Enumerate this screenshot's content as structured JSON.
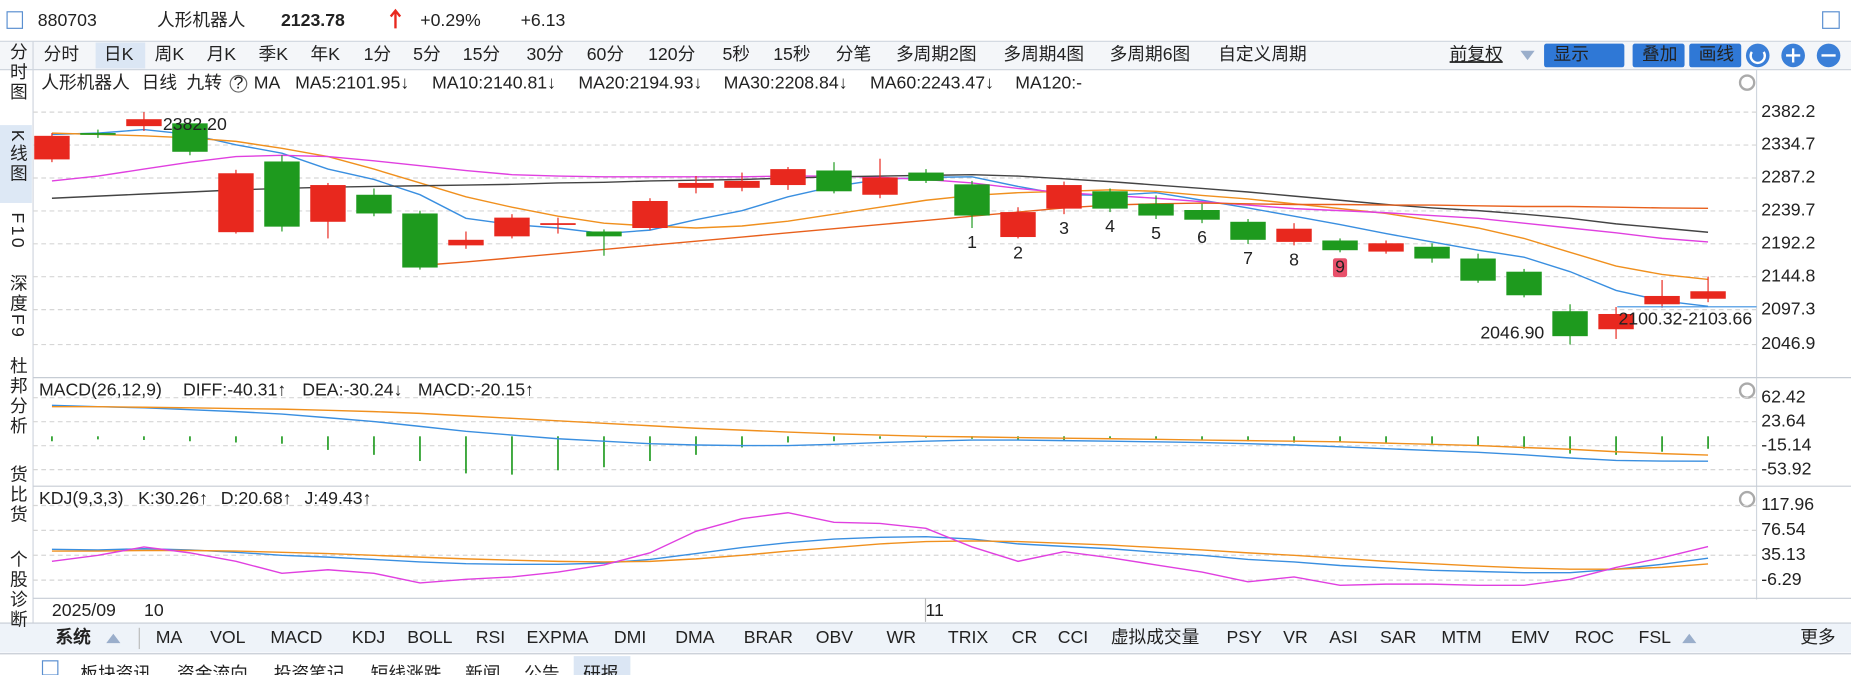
{
  "header": {
    "code": "880703",
    "name": "人形机器人",
    "price": "2123.78",
    "change_pct": "+0.29%",
    "change": "+6.13"
  },
  "left_nav": [
    "分时图",
    "K线图",
    "F10",
    "深度F9",
    "杜邦分析",
    "货比货",
    "个股诊断"
  ],
  "periods": [
    "分时",
    "日K",
    "周K",
    "月K",
    "季K",
    "年K",
    "1分",
    "5分",
    "15分",
    "30分",
    "60分",
    "120分",
    "5秒",
    "15秒",
    "分笔",
    "多周期2图",
    "多周期4图",
    "多周期6图",
    "自定义周期"
  ],
  "active_period": "日K",
  "toolbar": {
    "adjust": "前复权",
    "buttons": [
      "显示",
      "叠加",
      "画线"
    ]
  },
  "kline": {
    "legend": [
      "人形机器人",
      "日线",
      "九转"
    ],
    "ylim": [
      2002.6,
      2438.4
    ],
    "yticks": [
      2382.2,
      2334.7,
      2287.2,
      2239.7,
      2192.2,
      2144.8,
      2097.3,
      2046.9
    ],
    "candles": [
      {
        "open": 2314,
        "high": 2352,
        "low": 2310,
        "close": 2348
      },
      {
        "open": 2352,
        "high": 2357,
        "low": 2345,
        "close": 2350
      },
      {
        "open": 2362,
        "high": 2382.2,
        "low": 2355,
        "close": 2372
      },
      {
        "open": 2366,
        "high": 2372,
        "low": 2320,
        "close": 2325
      },
      {
        "open": 2209,
        "high": 2299,
        "low": 2207,
        "close": 2294
      },
      {
        "open": 2311,
        "high": 2320,
        "low": 2210,
        "close": 2217
      },
      {
        "open": 2224,
        "high": 2280,
        "low": 2200,
        "close": 2277
      },
      {
        "open": 2263,
        "high": 2272,
        "low": 2232,
        "close": 2236
      },
      {
        "open": 2236,
        "high": 2240,
        "low": 2155,
        "close": 2158
      },
      {
        "open": 2190,
        "high": 2210,
        "low": 2185,
        "close": 2198
      },
      {
        "open": 2203,
        "high": 2235,
        "low": 2200,
        "close": 2230
      },
      {
        "open": 2220,
        "high": 2230,
        "low": 2207,
        "close": 2222
      },
      {
        "open": 2210,
        "high": 2213,
        "low": 2175,
        "close": 2203
      },
      {
        "open": 2215,
        "high": 2258,
        "low": 2212,
        "close": 2254
      },
      {
        "open": 2273,
        "high": 2290,
        "low": 2265,
        "close": 2280
      },
      {
        "open": 2273,
        "high": 2295,
        "low": 2268,
        "close": 2283
      },
      {
        "open": 2277,
        "high": 2303,
        "low": 2270,
        "close": 2300
      },
      {
        "open": 2298,
        "high": 2310,
        "low": 2265,
        "close": 2268
      },
      {
        "open": 2263,
        "high": 2315,
        "low": 2258,
        "close": 2288
      },
      {
        "open": 2295,
        "high": 2300,
        "low": 2280,
        "close": 2283
      },
      {
        "open": 2278,
        "high": 2283,
        "low": 2215,
        "close": 2233
      },
      {
        "open": 2202,
        "high": 2245,
        "low": 2200,
        "close": 2238
      },
      {
        "open": 2243,
        "high": 2282,
        "low": 2235,
        "close": 2277
      },
      {
        "open": 2268,
        "high": 2272,
        "low": 2238,
        "close": 2243
      },
      {
        "open": 2250,
        "high": 2262,
        "low": 2228,
        "close": 2233
      },
      {
        "open": 2241,
        "high": 2250,
        "low": 2222,
        "close": 2227
      },
      {
        "open": 2224,
        "high": 2228,
        "low": 2192,
        "close": 2198
      },
      {
        "open": 2195,
        "high": 2222,
        "low": 2190,
        "close": 2214
      },
      {
        "open": 2197,
        "high": 2200,
        "low": 2180,
        "close": 2183
      },
      {
        "open": 2181,
        "high": 2197,
        "low": 2178,
        "close": 2193
      },
      {
        "open": 2188,
        "high": 2193,
        "low": 2165,
        "close": 2171
      },
      {
        "open": 2171,
        "high": 2178,
        "low": 2136,
        "close": 2139
      },
      {
        "open": 2152,
        "high": 2156,
        "low": 2115,
        "close": 2118
      },
      {
        "open": 2095,
        "high": 2105,
        "low": 2046.9,
        "close": 2059
      },
      {
        "open": 2069,
        "high": 2101,
        "low": 2055,
        "close": 2091
      },
      {
        "open": 2105,
        "high": 2140,
        "low": 2100,
        "close": 2117
      },
      {
        "open": 2113,
        "high": 2145,
        "low": 2108,
        "close": 2123.78
      }
    ],
    "ma_label": "MA",
    "ma": [
      {
        "name": "MA5:2101.95↓",
        "color": "#3a8fe0",
        "values": [
          2350,
          2352,
          2357,
          2350,
          2335,
          2323,
          2300,
          2285,
          2263,
          2229,
          2220,
          2215,
          2207,
          2212,
          2227,
          2240,
          2260,
          2275,
          2285,
          2288,
          2289,
          2275,
          2263,
          2262,
          2266,
          2255,
          2244,
          2232,
          2220,
          2207,
          2195,
          2183,
          2173,
          2152,
          2125,
          2110,
          2101.95
        ]
      },
      {
        "name": "MA10:2140.81↓",
        "color": "#f0901e",
        "values": [
          2352,
          2350,
          2348,
          2345,
          2340,
          2330,
          2318,
          2300,
          2280,
          2260,
          2245,
          2232,
          2222,
          2218,
          2215,
          2218,
          2225,
          2235,
          2245,
          2255,
          2262,
          2266,
          2268,
          2270,
          2268,
          2262,
          2257,
          2250,
          2243,
          2236,
          2226,
          2215,
          2200,
          2180,
          2160,
          2148,
          2140.81
        ]
      },
      {
        "name": "MA20:2194.93↓",
        "color": "#e040e0",
        "values": [
          2283,
          2290,
          2300,
          2310,
          2318,
          2320,
          2318,
          2312,
          2305,
          2298,
          2292,
          2290,
          2289,
          2289,
          2289,
          2289,
          2290,
          2290,
          2288,
          2285,
          2280,
          2272,
          2266,
          2262,
          2258,
          2253,
          2248,
          2243,
          2240,
          2237,
          2233,
          2229,
          2222,
          2215,
          2208,
          2200,
          2194.93
        ]
      },
      {
        "name": "MA30:2208.84↓",
        "color": "#444444",
        "values": [
          2258,
          2261,
          2264,
          2267,
          2270,
          2272,
          2274,
          2275,
          2276,
          2277,
          2278,
          2280,
          2281,
          2283,
          2284,
          2285,
          2287,
          2289,
          2290,
          2291,
          2292,
          2290,
          2286,
          2282,
          2277,
          2272,
          2267,
          2261,
          2255,
          2249,
          2244,
          2240,
          2235,
          2229,
          2221,
          2215,
          2208.84
        ]
      },
      {
        "name": "MA60:2243.47↓",
        "color": "#e8601c",
        "values": [
          null,
          null,
          null,
          null,
          null,
          null,
          null,
          null,
          2161,
          2166,
          2172,
          2178,
          2184,
          2190,
          2196,
          2202,
          2208,
          2214,
          2220,
          2226,
          2232,
          2238,
          2244,
          2248,
          2250,
          2251,
          2250,
          2249,
          2249,
          2248,
          2248,
          2247,
          2246,
          2246,
          2245,
          2244,
          2243.47
        ]
      },
      {
        "name": "MA120:-",
        "color": "#7a3fb0",
        "values": []
      }
    ],
    "high_label": "2382.20",
    "low_label": "2046.90",
    "range_label": "2100.32-2103.66",
    "nine_turn": [
      1,
      2,
      3,
      4,
      5,
      6,
      7,
      8,
      9
    ]
  },
  "macd": {
    "title": "MACD(26,12,9)",
    "ylim": [
      -80.7,
      91.1
    ],
    "yticks": [
      62.42,
      23.64,
      -15.14,
      -53.92
    ],
    "hist_name": "MACD:-20.15↑",
    "hist_color": "#e040e0",
    "hist": [
      -8,
      -5,
      -6,
      -8,
      -10,
      -12,
      -22,
      -30,
      -40,
      -60,
      -62,
      -55,
      -50,
      -40,
      -30,
      -18,
      -10,
      -8,
      -4,
      -2,
      -4,
      -6,
      -6,
      -4,
      -4,
      -6,
      -8,
      -10,
      -10,
      -10,
      -12,
      -15,
      -20,
      -28,
      -30,
      -25,
      -20.15
    ],
    "lines": [
      {
        "name": "DIFF:-40.31↑",
        "color": "#3a8fe0",
        "values": [
          50,
          48,
          46,
          43,
          40,
          36,
          30,
          24,
          16,
          8,
          2,
          -4,
          -8,
          -12,
          -14,
          -15,
          -15,
          -13,
          -10,
          -8,
          -6,
          -6,
          -7,
          -8,
          -9,
          -10,
          -12,
          -14,
          -17,
          -20,
          -23,
          -26,
          -30,
          -35,
          -39,
          -40,
          -40.31
        ]
      },
      {
        "name": "DEA:-30.24↓",
        "color": "#f0901e",
        "values": [
          48,
          48,
          47,
          46,
          45,
          44,
          42,
          40,
          37,
          33,
          29,
          25,
          21,
          17,
          13,
          10,
          7,
          4,
          2,
          0,
          -1,
          -2,
          -3,
          -4,
          -5,
          -6,
          -7,
          -8,
          -9,
          -11,
          -13,
          -15,
          -18,
          -21,
          -25,
          -28,
          -30.24
        ]
      }
    ]
  },
  "kdj": {
    "title": "KDJ(9,3,3)",
    "ylim": [
      -34.6,
      146.2
    ],
    "yticks": [
      117.96,
      76.54,
      35.13,
      -6.29
    ],
    "lines": [
      {
        "name": "K:30.26↑",
        "color": "#3a8fe0",
        "values": [
          45,
          44,
          46,
          44,
          40,
          35,
          32,
          28,
          24,
          21,
          20,
          20,
          22,
          28,
          38,
          48,
          56,
          62,
          65,
          66,
          62,
          54,
          50,
          46,
          40,
          35,
          28,
          24,
          18,
          14,
          10,
          8,
          6,
          6,
          12,
          20,
          30.26
        ]
      },
      {
        "name": "D:20.68↑",
        "color": "#f0901e",
        "values": [
          42,
          42,
          43,
          43,
          42,
          40,
          38,
          35,
          32,
          29,
          27,
          25,
          24,
          25,
          29,
          35,
          42,
          48,
          54,
          58,
          59,
          58,
          55,
          52,
          48,
          44,
          39,
          35,
          30,
          25,
          21,
          17,
          14,
          12,
          12,
          15,
          20.68
        ]
      },
      {
        "name": "J:49.43↑",
        "color": "#e040e0",
        "values": [
          25,
          35,
          49,
          39,
          25,
          5,
          11,
          5,
          -11,
          -5,
          -1,
          7,
          19,
          39,
          75,
          96,
          106,
          90,
          88,
          80,
          49,
          25,
          41,
          31,
          19,
          7,
          -9,
          -1,
          -15,
          -13,
          -13,
          -15,
          -15,
          -5,
          15,
          31,
          49.43
        ]
      }
    ]
  },
  "date_labels": [
    "2025/09",
    "10",
    "11"
  ],
  "indicator_tabs": [
    "系统",
    "MA",
    "VOL",
    "MACD",
    "KDJ",
    "BOLL",
    "RSI",
    "EXPMA",
    "DMI",
    "DMA",
    "BRAR",
    "OBV",
    "WR",
    "TRIX",
    "CR",
    "CCI",
    "虚拟成交量",
    "PSY",
    "VR",
    "ASI",
    "SAR",
    "MTM",
    "EMV",
    "ROC",
    "FSL"
  ],
  "more": "更多",
  "info_tabs": [
    "板块资讯",
    "资金流向",
    "投资笔记",
    "短线涨跌",
    "新闻",
    "公告",
    "研报"
  ]
}
